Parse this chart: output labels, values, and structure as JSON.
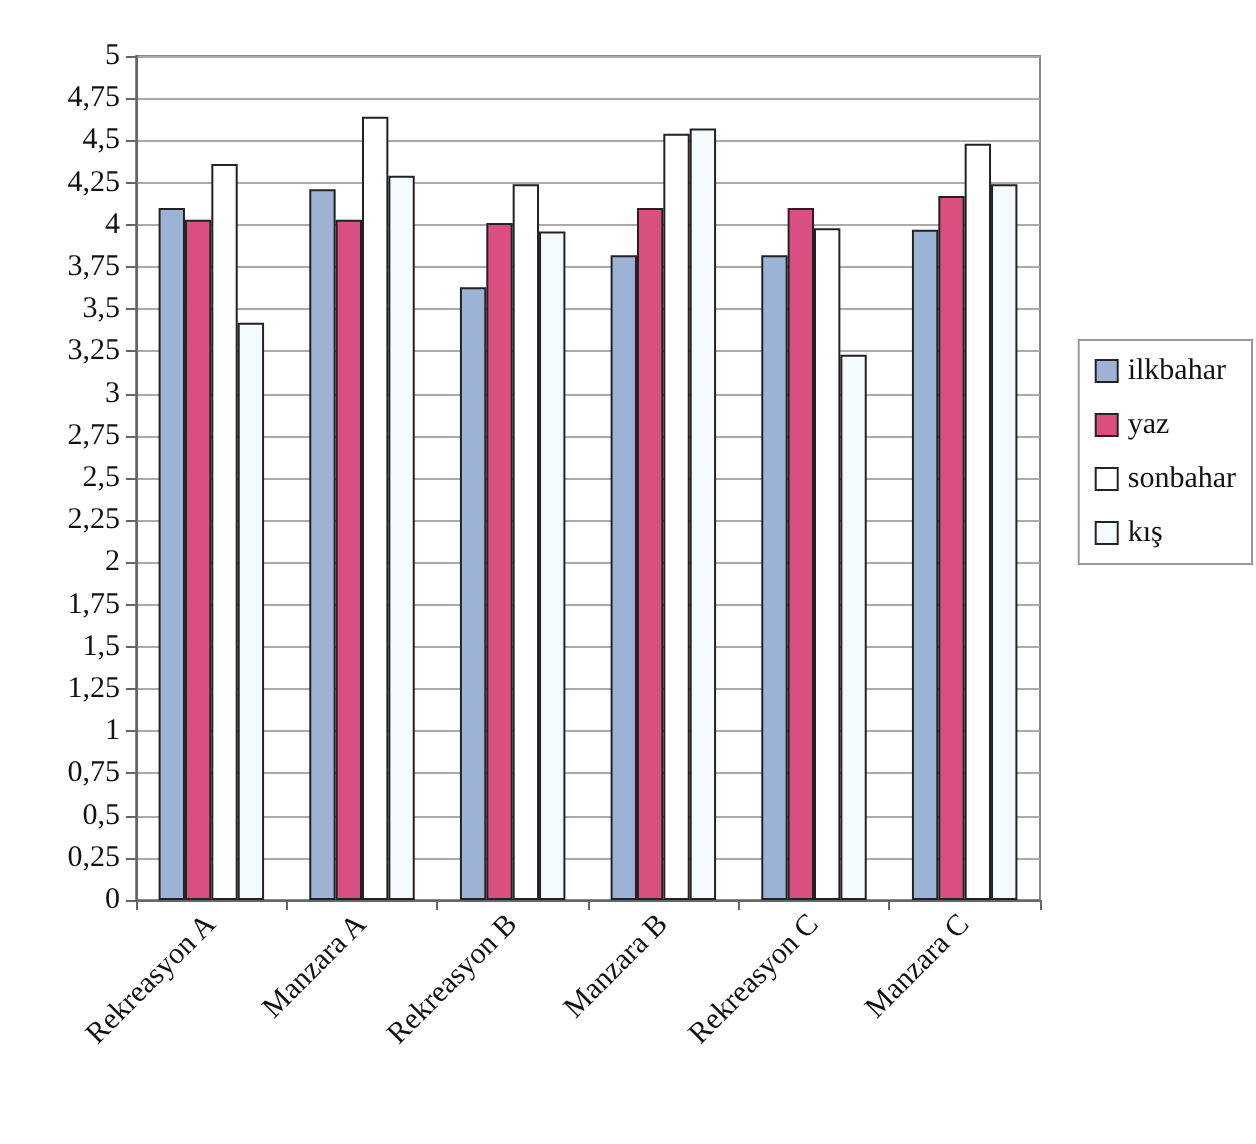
{
  "chart_data": {
    "type": "bar",
    "categories": [
      "Rekreasyon A",
      "Manzara A",
      "Rekreasyon B",
      "Manzara B",
      "Rekreasyon C",
      "Manzara C"
    ],
    "series": [
      {
        "name": "ilkbahar",
        "color": "#9db3d6",
        "values": [
          4.1,
          4.21,
          3.63,
          3.82,
          3.82,
          3.97
        ]
      },
      {
        "name": "yaz",
        "color": "#d94f7f",
        "values": [
          4.03,
          4.03,
          4.01,
          4.1,
          4.1,
          4.17
        ]
      },
      {
        "name": "sonbahar",
        "color": "#ffffff",
        "values": [
          4.36,
          4.64,
          4.24,
          4.54,
          3.98,
          4.48
        ]
      },
      {
        "name": "kış",
        "color": "#f4fbfd",
        "values": [
          3.42,
          4.29,
          3.96,
          4.57,
          3.23,
          4.24
        ]
      }
    ],
    "ylim": [
      0,
      5
    ],
    "yticks": [
      0,
      {
        "value": 0.25,
        "label": "0,25"
      },
      {
        "value": 0.5,
        "label": "0,5"
      },
      {
        "value": 0.75,
        "label": "0,75"
      },
      1,
      {
        "value": 1.25,
        "label": "1,25"
      },
      {
        "value": 1.5,
        "label": "1,5"
      },
      {
        "value": 1.75,
        "label": "1,75"
      },
      2,
      {
        "value": 2.25,
        "label": "2,25"
      },
      {
        "value": 2.5,
        "label": "2,5"
      },
      {
        "value": 2.75,
        "label": "2,75"
      },
      3,
      {
        "value": 3.25,
        "label": "3,25"
      },
      {
        "value": 3.5,
        "label": "3,5"
      },
      {
        "value": 3.75,
        "label": "3,75"
      },
      4,
      {
        "value": 4.25,
        "label": "4,25"
      },
      {
        "value": 4.5,
        "label": "4,5"
      },
      {
        "value": 4.75,
        "label": "4,75"
      },
      5
    ],
    "grid": "y",
    "legend": "right"
  }
}
